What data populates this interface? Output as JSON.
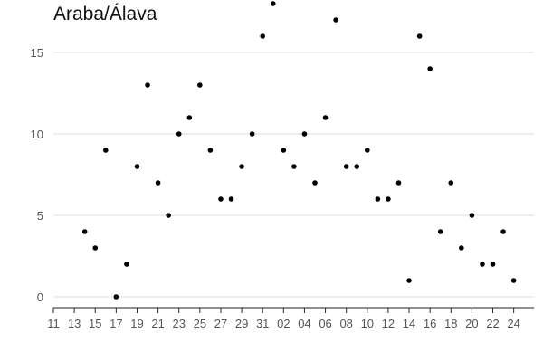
{
  "chart_data": {
    "type": "scatter",
    "title": "Araba/Álava",
    "xlabel": "",
    "ylabel": "",
    "x_tick_labels": [
      "11",
      "13",
      "15",
      "17",
      "19",
      "21",
      "23",
      "25",
      "27",
      "29",
      "31",
      "02",
      "04",
      "06",
      "08",
      "10",
      "12",
      "14",
      "16",
      "18",
      "20",
      "22",
      "24"
    ],
    "x_start_label_index": 0,
    "ylim": [
      0,
      18
    ],
    "y_ticks": [
      0,
      5,
      10,
      15
    ],
    "grid": true,
    "legend": "none",
    "point_color": "#000000",
    "values": [
      4,
      3,
      9,
      0,
      2,
      8,
      13,
      7,
      5,
      10,
      11,
      13,
      9,
      6,
      6,
      8,
      10,
      16,
      18,
      9,
      8,
      10,
      7,
      11,
      17,
      8,
      8,
      9,
      6,
      6,
      7,
      1,
      16,
      14,
      4,
      7,
      3,
      5,
      2,
      2,
      4,
      1
    ]
  }
}
